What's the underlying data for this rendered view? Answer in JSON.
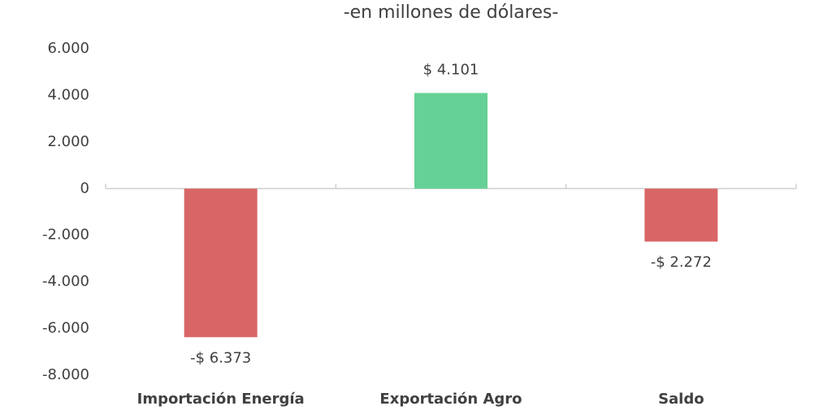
{
  "chart_data": {
    "type": "bar",
    "subtitle": "-en millones de dólares-",
    "categories": [
      "Importación Energía",
      "Exportación Agro",
      "Saldo"
    ],
    "values": [
      -6373,
      4101,
      -2272
    ],
    "value_labels": [
      "-$ 6.373",
      "$ 4.101",
      "-$ 2.272"
    ],
    "colors": [
      "#d96666",
      "#66d196",
      "#d96666"
    ],
    "ylim": [
      -8000,
      6000
    ],
    "yticks": [
      {
        "value": -8000,
        "label": "-8.000"
      },
      {
        "value": -6000,
        "label": "-6.000"
      },
      {
        "value": -4000,
        "label": "-4.000"
      },
      {
        "value": -2000,
        "label": "-2.000"
      },
      0,
      {
        "value": 2000,
        "label": "2.000"
      },
      {
        "value": 4000,
        "label": "4.000"
      },
      {
        "value": 6000,
        "label": "6.000"
      }
    ],
    "grid": false
  }
}
